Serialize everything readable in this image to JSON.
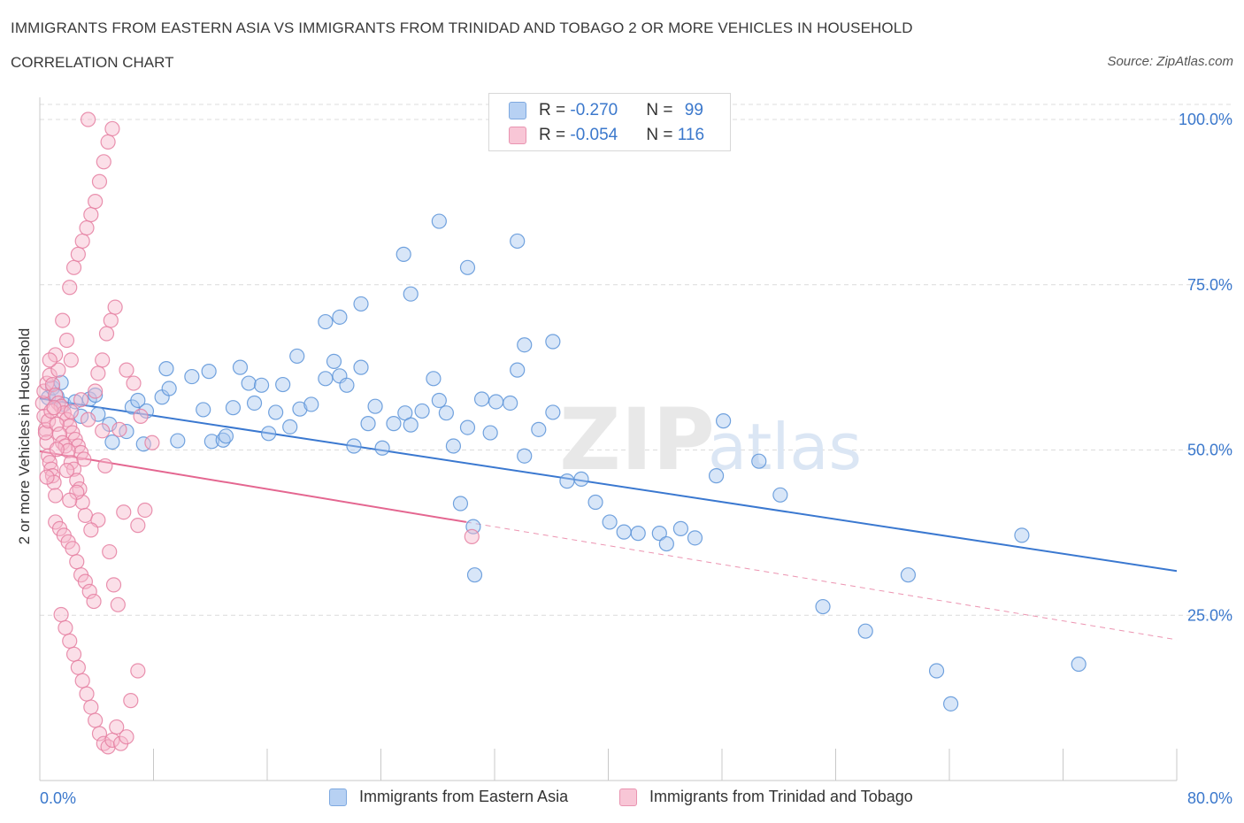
{
  "header": {
    "title": "IMMIGRANTS FROM EASTERN ASIA VS IMMIGRANTS FROM TRINIDAD AND TOBAGO 2 OR MORE VEHICLES IN HOUSEHOLD",
    "subtitle": "CORRELATION CHART",
    "source": "Source: ZipAtlas.com"
  },
  "colors": {
    "blue_fill": "#a9c8f0",
    "blue_stroke": "#5b93d8",
    "blue_line": "#3a78d0",
    "pink_fill": "#f6b9cc",
    "pink_stroke": "#e57fa1",
    "pink_line": "#e46690",
    "tick_label": "#3b78cc",
    "grid": "#dcdcdc"
  },
  "stats_legend": {
    "blue": {
      "r_label": "R = ",
      "r_value": "-0.270",
      "n_label": "N = ",
      "n_value": "99"
    },
    "pink": {
      "r_label": "R = ",
      "r_value": "-0.054",
      "n_label": "N = ",
      "n_value": "116"
    }
  },
  "chart_data": {
    "type": "scatter",
    "title": "IMMIGRANTS FROM EASTERN ASIA VS IMMIGRANTS FROM TRINIDAD AND TOBAGO 2 OR MORE VEHICLES IN HOUSEHOLD",
    "subtitle": "CORRELATION CHART",
    "xlabel": "",
    "ylabel": "2 or more Vehicles in Household",
    "xlim": [
      0,
      80
    ],
    "ylim": [
      0,
      100
    ],
    "x_tick_labels": [
      "0.0%",
      "80.0%"
    ],
    "y_tick_labels": [
      "100.0%",
      "75.0%",
      "50.0%",
      "25.0%"
    ],
    "y_ticks": [
      100,
      75,
      50,
      25
    ],
    "grid": true,
    "legend_position": "bottom",
    "watermark": "ZIPatlas",
    "series": [
      {
        "name": "Immigrants from Eastern Asia",
        "color": "#5b93d8",
        "trend": {
          "x": [
            0,
            80
          ],
          "y": [
            57.8,
            31.7
          ],
          "dashed_from": null
        },
        "points": [
          [
            0.6,
            57.9
          ],
          [
            0.9,
            59.4
          ],
          [
            1.2,
            58.1
          ],
          [
            1.7,
            56.9
          ],
          [
            1.5,
            60.2
          ],
          [
            2.5,
            57.3
          ],
          [
            2.9,
            55.1
          ],
          [
            3.5,
            57.7
          ],
          [
            4.1,
            55.4
          ],
          [
            3.9,
            58.3
          ],
          [
            4.9,
            53.9
          ],
          [
            5.1,
            51.2
          ],
          [
            6.1,
            52.8
          ],
          [
            6.5,
            56.5
          ],
          [
            7.3,
            50.9
          ],
          [
            6.9,
            57.5
          ],
          [
            7.5,
            55.9
          ],
          [
            8.6,
            58.0
          ],
          [
            9.1,
            59.3
          ],
          [
            8.9,
            62.3
          ],
          [
            9.7,
            51.4
          ],
          [
            10.7,
            61.1
          ],
          [
            11.5,
            56.1
          ],
          [
            12.1,
            51.3
          ],
          [
            11.9,
            61.9
          ],
          [
            12.9,
            51.5
          ],
          [
            13.6,
            56.4
          ],
          [
            13.1,
            52.1
          ],
          [
            14.1,
            62.5
          ],
          [
            14.7,
            60.1
          ],
          [
            15.1,
            57.1
          ],
          [
            15.6,
            59.8
          ],
          [
            16.1,
            52.5
          ],
          [
            16.6,
            55.7
          ],
          [
            17.1,
            59.9
          ],
          [
            17.6,
            53.5
          ],
          [
            18.1,
            64.2
          ],
          [
            18.3,
            56.2
          ],
          [
            19.1,
            56.9
          ],
          [
            20.1,
            60.8
          ],
          [
            20.7,
            63.4
          ],
          [
            21.1,
            61.2
          ],
          [
            21.6,
            59.8
          ],
          [
            22.1,
            50.6
          ],
          [
            22.6,
            62.5
          ],
          [
            23.1,
            54.0
          ],
          [
            23.6,
            56.6
          ],
          [
            24.1,
            50.3
          ],
          [
            24.9,
            54.0
          ],
          [
            25.7,
            55.6
          ],
          [
            26.1,
            53.8
          ],
          [
            26.9,
            55.9
          ],
          [
            27.7,
            60.8
          ],
          [
            28.1,
            57.5
          ],
          [
            28.6,
            55.6
          ],
          [
            29.1,
            50.6
          ],
          [
            29.6,
            41.9
          ],
          [
            30.1,
            53.4
          ],
          [
            30.5,
            38.4
          ],
          [
            31.1,
            57.7
          ],
          [
            31.7,
            52.6
          ],
          [
            32.1,
            57.3
          ],
          [
            33.1,
            57.1
          ],
          [
            33.6,
            62.1
          ],
          [
            34.1,
            49.1
          ],
          [
            35.1,
            53.1
          ],
          [
            36.1,
            55.7
          ],
          [
            37.1,
            45.3
          ],
          [
            38.1,
            45.6
          ],
          [
            39.1,
            42.1
          ],
          [
            40.1,
            39.1
          ],
          [
            41.1,
            37.6
          ],
          [
            42.1,
            37.4
          ],
          [
            43.6,
            37.4
          ],
          [
            44.1,
            35.8
          ],
          [
            45.1,
            38.1
          ],
          [
            46.1,
            36.7
          ],
          [
            47.6,
            46.1
          ],
          [
            48.1,
            54.4
          ],
          [
            50.6,
            48.3
          ],
          [
            52.1,
            43.2
          ],
          [
            55.1,
            26.3
          ],
          [
            58.1,
            22.6
          ],
          [
            61.1,
            31.1
          ],
          [
            63.1,
            16.6
          ],
          [
            64.1,
            11.6
          ],
          [
            69.1,
            37.1
          ],
          [
            73.1,
            17.6
          ],
          [
            28.1,
            84.6
          ],
          [
            33.6,
            81.6
          ],
          [
            25.6,
            79.6
          ],
          [
            30.1,
            77.6
          ],
          [
            26.1,
            73.6
          ],
          [
            22.6,
            72.1
          ],
          [
            21.1,
            70.1
          ],
          [
            20.1,
            69.4
          ],
          [
            36.1,
            66.4
          ],
          [
            34.1,
            65.9
          ],
          [
            30.6,
            31.1
          ]
        ]
      },
      {
        "name": "Immigrants from Trinidad and Tobago",
        "color": "#e57fa1",
        "trend": {
          "x": [
            0,
            30
          ],
          "y": [
            49.8,
            39.1
          ],
          "dashed_from": [
            30,
            80
          ],
          "dashed_y": [
            39.1,
            21.3
          ]
        },
        "points": [
          [
            0.2,
            57.1
          ],
          [
            0.3,
            55.1
          ],
          [
            0.4,
            53.1
          ],
          [
            0.5,
            51.2
          ],
          [
            0.6,
            49.1
          ],
          [
            0.7,
            48.1
          ],
          [
            0.8,
            47.1
          ],
          [
            0.9,
            46.1
          ],
          [
            1.0,
            45.1
          ],
          [
            1.1,
            43.1
          ],
          [
            0.3,
            58.9
          ],
          [
            0.5,
            60.1
          ],
          [
            0.7,
            61.3
          ],
          [
            0.9,
            59.9
          ],
          [
            1.1,
            58.3
          ],
          [
            1.3,
            57.1
          ],
          [
            1.5,
            56.6
          ],
          [
            1.7,
            55.6
          ],
          [
            1.9,
            54.6
          ],
          [
            2.1,
            53.6
          ],
          [
            2.3,
            52.6
          ],
          [
            2.5,
            51.6
          ],
          [
            2.7,
            50.6
          ],
          [
            2.9,
            49.6
          ],
          [
            3.1,
            48.6
          ],
          [
            0.4,
            52.6
          ],
          [
            0.6,
            54.4
          ],
          [
            0.8,
            55.9
          ],
          [
            1.0,
            56.4
          ],
          [
            1.2,
            53.9
          ],
          [
            1.4,
            52.4
          ],
          [
            1.6,
            51.1
          ],
          [
            1.8,
            50.6
          ],
          [
            2.0,
            49.9
          ],
          [
            2.2,
            48.1
          ],
          [
            2.4,
            47.1
          ],
          [
            2.6,
            45.4
          ],
          [
            2.8,
            44.1
          ],
          [
            3.0,
            42.1
          ],
          [
            3.2,
            40.1
          ],
          [
            1.1,
            39.1
          ],
          [
            1.4,
            38.1
          ],
          [
            1.7,
            37.1
          ],
          [
            2.0,
            36.1
          ],
          [
            2.3,
            35.1
          ],
          [
            2.6,
            33.1
          ],
          [
            2.9,
            31.1
          ],
          [
            3.2,
            30.1
          ],
          [
            3.5,
            28.6
          ],
          [
            3.8,
            27.1
          ],
          [
            1.5,
            25.1
          ],
          [
            1.8,
            23.1
          ],
          [
            2.1,
            21.1
          ],
          [
            2.4,
            19.1
          ],
          [
            2.7,
            17.1
          ],
          [
            3.0,
            15.1
          ],
          [
            3.3,
            13.1
          ],
          [
            3.6,
            11.1
          ],
          [
            3.9,
            9.1
          ],
          [
            4.2,
            7.1
          ],
          [
            4.5,
            5.6
          ],
          [
            4.8,
            5.1
          ],
          [
            5.1,
            6.1
          ],
          [
            5.4,
            8.1
          ],
          [
            5.7,
            5.6
          ],
          [
            6.1,
            6.6
          ],
          [
            6.4,
            12.1
          ],
          [
            6.9,
            16.6
          ],
          [
            7.4,
            40.9
          ],
          [
            7.9,
            51.1
          ],
          [
            4.1,
            61.6
          ],
          [
            4.4,
            63.6
          ],
          [
            4.7,
            67.6
          ],
          [
            5.0,
            69.6
          ],
          [
            5.3,
            71.6
          ],
          [
            2.1,
            74.6
          ],
          [
            2.4,
            77.6
          ],
          [
            2.7,
            79.6
          ],
          [
            3.0,
            81.6
          ],
          [
            3.3,
            83.6
          ],
          [
            3.6,
            85.6
          ],
          [
            3.9,
            87.6
          ],
          [
            4.2,
            90.6
          ],
          [
            4.5,
            93.6
          ],
          [
            4.8,
            96.6
          ],
          [
            5.1,
            98.6
          ],
          [
            3.4,
            100.0
          ],
          [
            1.6,
            69.6
          ],
          [
            1.9,
            66.6
          ],
          [
            2.2,
            63.6
          ],
          [
            6.1,
            62.1
          ],
          [
            6.6,
            60.1
          ],
          [
            7.1,
            55.1
          ],
          [
            5.6,
            53.1
          ],
          [
            4.6,
            47.6
          ],
          [
            5.9,
            40.6
          ],
          [
            6.9,
            38.6
          ],
          [
            4.9,
            34.6
          ],
          [
            5.2,
            29.6
          ],
          [
            5.5,
            26.6
          ],
          [
            2.6,
            43.6
          ],
          [
            2.1,
            42.4
          ],
          [
            4.1,
            39.4
          ],
          [
            3.6,
            37.9
          ],
          [
            30.4,
            36.9
          ],
          [
            1.3,
            62.1
          ],
          [
            1.1,
            64.4
          ],
          [
            0.7,
            63.6
          ],
          [
            3.9,
            58.9
          ],
          [
            2.9,
            57.6
          ],
          [
            4.4,
            52.9
          ],
          [
            3.4,
            54.6
          ],
          [
            2.2,
            55.8
          ],
          [
            1.2,
            50.1
          ],
          [
            0.5,
            45.9
          ],
          [
            1.9,
            46.9
          ]
        ]
      }
    ]
  },
  "bottom_legend": [
    {
      "label": "Immigrants from Eastern Asia"
    },
    {
      "label": "Immigrants from Trinidad and Tobago"
    }
  ]
}
